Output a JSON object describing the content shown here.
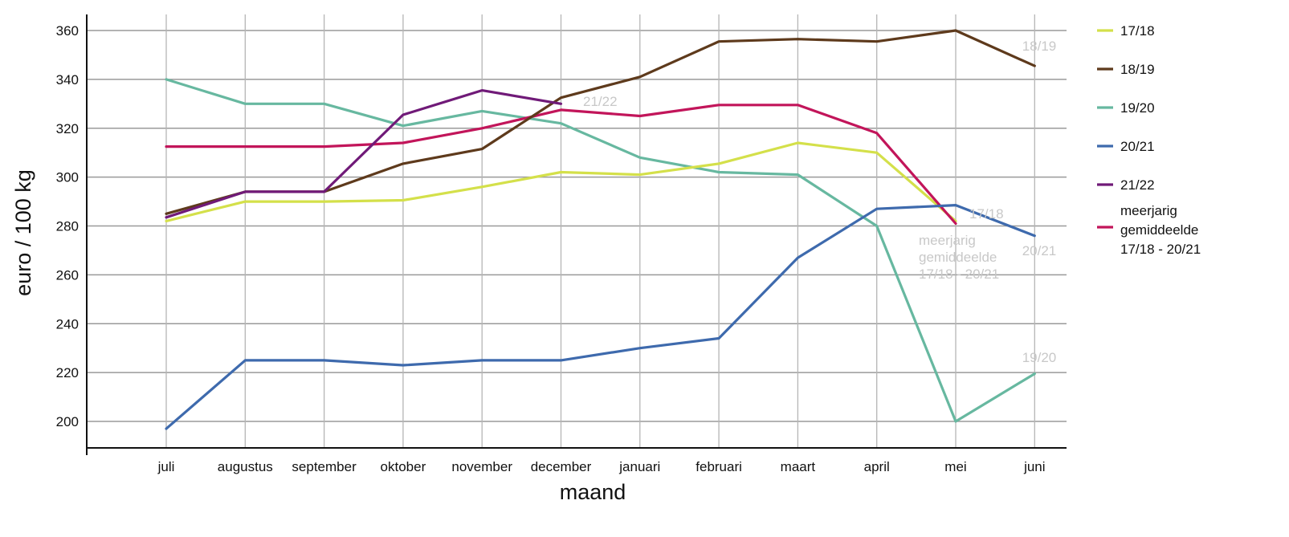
{
  "chart_data": {
    "type": "line",
    "title": "",
    "xlabel": "maand",
    "ylabel": "euro / 100 kg",
    "categories": [
      "juli",
      "augustus",
      "september",
      "oktober",
      "november",
      "december",
      "januari",
      "februari",
      "maart",
      "april",
      "mei",
      "juni"
    ],
    "yticks": [
      200,
      220,
      240,
      260,
      280,
      300,
      320,
      340,
      360
    ],
    "ylim": [
      190,
      365
    ],
    "grid": true,
    "legend_position": "right",
    "series": [
      {
        "name": "17/18",
        "color": "#d4e04a",
        "end_label": "17/18",
        "values": [
          282,
          290,
          290,
          290.5,
          296,
          302,
          301,
          305.5,
          314,
          310,
          282,
          null
        ]
      },
      {
        "name": "18/19",
        "color": "#5e3a1c",
        "end_label": "18/19",
        "values": [
          285,
          294,
          294,
          305.5,
          311.5,
          332.5,
          341,
          355.5,
          356.5,
          355.5,
          360,
          345.5
        ]
      },
      {
        "name": "19/20",
        "color": "#67b8a0",
        "end_label": "19/20",
        "values": [
          340,
          330,
          330,
          321,
          327,
          322,
          308,
          302,
          301,
          280,
          200,
          219.5
        ]
      },
      {
        "name": "20/21",
        "color": "#3e6aad",
        "end_label": "20/21",
        "values": [
          197,
          225,
          225,
          223,
          225,
          225,
          230,
          234,
          267,
          287,
          288.5,
          276
        ]
      },
      {
        "name": "21/22",
        "color": "#701a78",
        "end_label": "21/22",
        "values": [
          283.5,
          294,
          294,
          325.5,
          335.5,
          330,
          null,
          null,
          null,
          null,
          null,
          null
        ]
      },
      {
        "name": "meerjarig gemiddeelde 17/18 - 20/21",
        "color": "#c2155a",
        "end_label": "meerjarig gemiddeelde 17/18 - 20/21",
        "values": [
          312.5,
          312.5,
          312.5,
          314,
          320,
          327.5,
          325,
          329.5,
          329.5,
          318,
          281,
          null
        ]
      }
    ]
  },
  "legend": [
    {
      "label_lines": [
        "17/18"
      ],
      "color": "#d4e04a"
    },
    {
      "label_lines": [
        "18/19"
      ],
      "color": "#5e3a1c"
    },
    {
      "label_lines": [
        "19/20"
      ],
      "color": "#67b8a0"
    },
    {
      "label_lines": [
        "20/21"
      ],
      "color": "#3e6aad"
    },
    {
      "label_lines": [
        "21/22"
      ],
      "color": "#701a78"
    },
    {
      "label_lines": [
        "meerjarig",
        "gemiddeelde",
        "17/18 - 20/21"
      ],
      "color": "#c2155a"
    }
  ],
  "end_labels": [
    {
      "lines": [
        "18/19"
      ]
    },
    {
      "lines": [
        "21/22"
      ]
    },
    {
      "lines": [
        "17/18"
      ]
    },
    {
      "lines": [
        "20/21"
      ]
    },
    {
      "lines": [
        "meerjarig",
        "gemiddeelde",
        "17/18 - 20/21"
      ]
    },
    {
      "lines": [
        "19/20"
      ]
    }
  ]
}
